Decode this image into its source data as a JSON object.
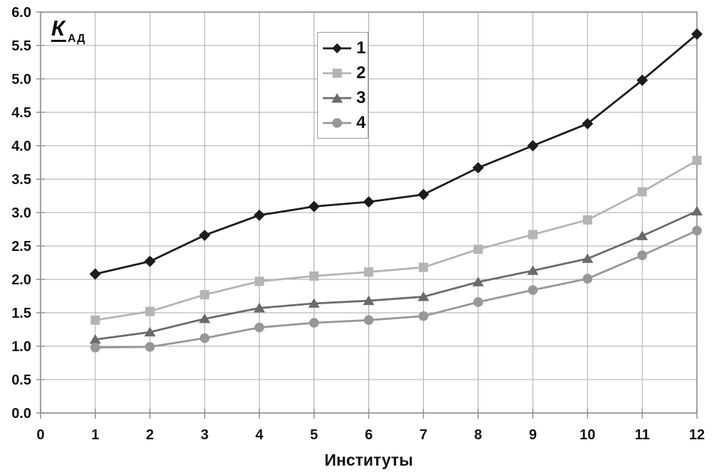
{
  "figure": {
    "y_axis_title": {
      "main": "К",
      "sub": "АД"
    }
  },
  "chart_data": {
    "type": "line",
    "title": "",
    "xlabel": "Институты",
    "ylabel": "К АД",
    "x": [
      1,
      2,
      3,
      4,
      5,
      6,
      7,
      8,
      9,
      10,
      11,
      12
    ],
    "xlim": [
      0,
      12
    ],
    "ylim": [
      0,
      6
    ],
    "grid": true,
    "legend_position": "inside-top, left of center",
    "xticks": [
      "0",
      "1",
      "2",
      "3",
      "4",
      "5",
      "6",
      "7",
      "8",
      "9",
      "10",
      "11",
      "12"
    ],
    "yticks": [
      "0.0",
      "0.5",
      "1.0",
      "1.5",
      "2.0",
      "2.5",
      "3.0",
      "3.5",
      "4.0",
      "4.5",
      "5.0",
      "5.5",
      "6.0"
    ],
    "series": [
      {
        "name": "1",
        "marker": "diamond",
        "color": "#1c1c1c",
        "values": [
          2.08,
          2.27,
          2.66,
          2.96,
          3.09,
          3.16,
          3.27,
          3.67,
          4.0,
          4.33,
          4.98,
          5.67
        ]
      },
      {
        "name": "2",
        "marker": "square",
        "color": "#b4b4b4",
        "values": [
          1.39,
          1.52,
          1.77,
          1.97,
          2.05,
          2.11,
          2.18,
          2.45,
          2.67,
          2.89,
          3.31,
          3.78
        ]
      },
      {
        "name": "3",
        "marker": "triangle",
        "color": "#686c6e",
        "values": [
          1.1,
          1.21,
          1.41,
          1.57,
          1.64,
          1.68,
          1.74,
          1.96,
          2.13,
          2.31,
          2.65,
          3.02
        ]
      },
      {
        "name": "4",
        "marker": "circle",
        "color": "#949899",
        "values": [
          0.98,
          0.99,
          1.12,
          1.28,
          1.35,
          1.39,
          1.45,
          1.66,
          1.84,
          2.01,
          2.36,
          2.73
        ]
      }
    ],
    "colors": {
      "gridline": "#a9a9a9",
      "border": "#8a8a8a",
      "text": "#111111",
      "background": "#ffffff"
    }
  }
}
